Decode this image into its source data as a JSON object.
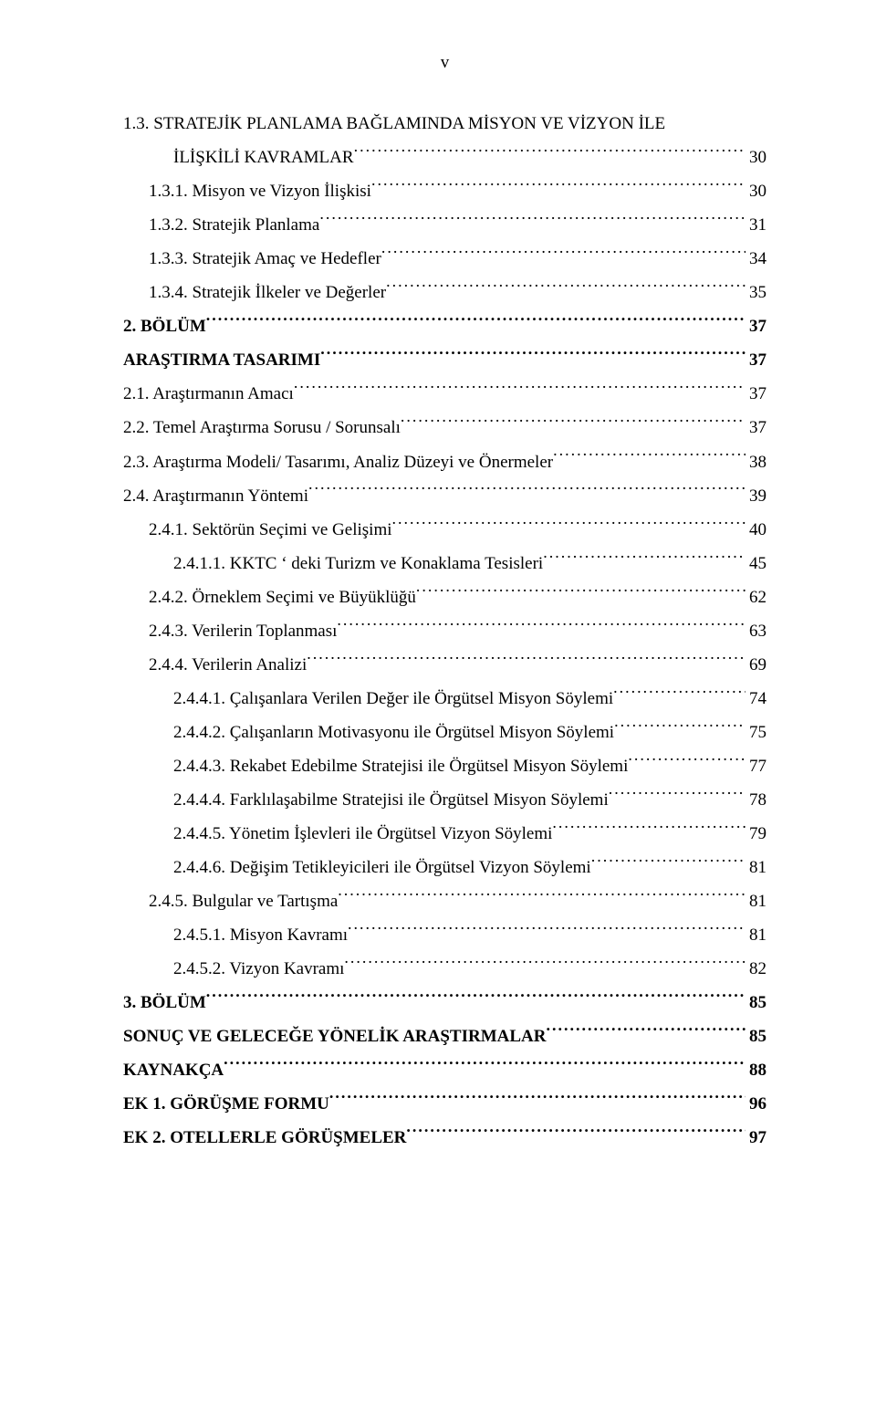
{
  "pageMarker": "v",
  "entries": [
    {
      "text": "1.3. STRATEJİK PLANLAMA BAĞLAMINDA MİSYON VE VİZYON İLE",
      "cont": "İLİŞKİLİ KAVRAMLAR",
      "page": "30",
      "indent": 0,
      "bold": false
    },
    {
      "text": "1.3.1. Misyon ve Vizyon İlişkisi",
      "page": "30",
      "indent": 1,
      "bold": false
    },
    {
      "text": "1.3.2. Stratejik Planlama",
      "page": "31",
      "indent": 1,
      "bold": false
    },
    {
      "text": "1.3.3. Stratejik Amaç ve Hedefler",
      "page": "34",
      "indent": 1,
      "bold": false
    },
    {
      "text": "1.3.4. Stratejik İlkeler ve Değerler",
      "page": "35",
      "indent": 1,
      "bold": false
    },
    {
      "text": "2. BÖLÜM",
      "page": "37",
      "indent": 0,
      "bold": true
    },
    {
      "text": "ARAŞTIRMA TASARIMI",
      "page": "37",
      "indent": 0,
      "bold": true
    },
    {
      "text": "2.1. Araştırmanın Amacı",
      "page": "37",
      "indent": 0,
      "bold": false
    },
    {
      "text": "2.2. Temel Araştırma Sorusu / Sorunsalı",
      "page": "37",
      "indent": 0,
      "bold": false
    },
    {
      "text": "2.3. Araştırma Modeli/ Tasarımı, Analiz Düzeyi ve Önermeler",
      "page": "38",
      "indent": 0,
      "bold": false
    },
    {
      "text": "2.4. Araştırmanın Yöntemi",
      "page": "39",
      "indent": 0,
      "bold": false
    },
    {
      "text": "2.4.1. Sektörün Seçimi ve Gelişimi",
      "page": "40",
      "indent": 1,
      "bold": false
    },
    {
      "text": "2.4.1.1. KKTC ‘ deki Turizm ve Konaklama Tesisleri",
      "page": "45",
      "indent": 2,
      "bold": false
    },
    {
      "text": "2.4.2. Örneklem Seçimi ve Büyüklüğü",
      "page": "62",
      "indent": 1,
      "bold": false
    },
    {
      "text": "2.4.3. Verilerin Toplanması",
      "page": "63",
      "indent": 1,
      "bold": false
    },
    {
      "text": "2.4.4. Verilerin Analizi",
      "page": "69",
      "indent": 1,
      "bold": false
    },
    {
      "text": "2.4.4.1. Çalışanlara Verilen Değer ile Örgütsel Misyon Söylemi",
      "page": "74",
      "indent": 2,
      "bold": false
    },
    {
      "text": "2.4.4.2. Çalışanların Motivasyonu ile Örgütsel Misyon Söylemi",
      "page": "75",
      "indent": 2,
      "bold": false
    },
    {
      "text": "2.4.4.3. Rekabet Edebilme Stratejisi ile Örgütsel Misyon Söylemi",
      "page": "77",
      "indent": 2,
      "bold": false
    },
    {
      "text": "2.4.4.4. Farklılaşabilme Stratejisi ile Örgütsel Misyon Söylemi",
      "page": "78",
      "indent": 2,
      "bold": false
    },
    {
      "text": "2.4.4.5. Yönetim İşlevleri ile Örgütsel Vizyon Söylemi",
      "page": "79",
      "indent": 2,
      "bold": false
    },
    {
      "text": "2.4.4.6. Değişim Tetikleyicileri ile Örgütsel Vizyon Söylemi",
      "page": "81",
      "indent": 2,
      "bold": false
    },
    {
      "text": "2.4.5. Bulgular ve Tartışma",
      "page": "81",
      "indent": 1,
      "bold": false
    },
    {
      "text": "2.4.5.1. Misyon Kavramı",
      "page": "81",
      "indent": 2,
      "bold": false
    },
    {
      "text": "2.4.5.2. Vizyon Kavramı",
      "page": "82",
      "indent": 2,
      "bold": false
    },
    {
      "text": "3. BÖLÜM",
      "page": "85",
      "indent": 0,
      "bold": true
    },
    {
      "text": "SONUÇ VE GELECEĞE YÖNELİK ARAŞTIRMALAR",
      "page": "85",
      "indent": 0,
      "bold": true
    },
    {
      "text": "KAYNAKÇA",
      "page": "88",
      "indent": 0,
      "bold": true
    },
    {
      "text": "EK 1. GÖRÜŞME FORMU",
      "page": "96",
      "indent": 0,
      "bold": true
    },
    {
      "text": "EK 2. OTELLERLE GÖRÜŞMELER",
      "page": "97",
      "indent": 0,
      "bold": true
    }
  ],
  "colors": {
    "background": "#ffffff",
    "text": "#000000"
  },
  "typography": {
    "fontFamily": "Times New Roman",
    "fontSize": 19,
    "lineHeight": 1.95
  }
}
